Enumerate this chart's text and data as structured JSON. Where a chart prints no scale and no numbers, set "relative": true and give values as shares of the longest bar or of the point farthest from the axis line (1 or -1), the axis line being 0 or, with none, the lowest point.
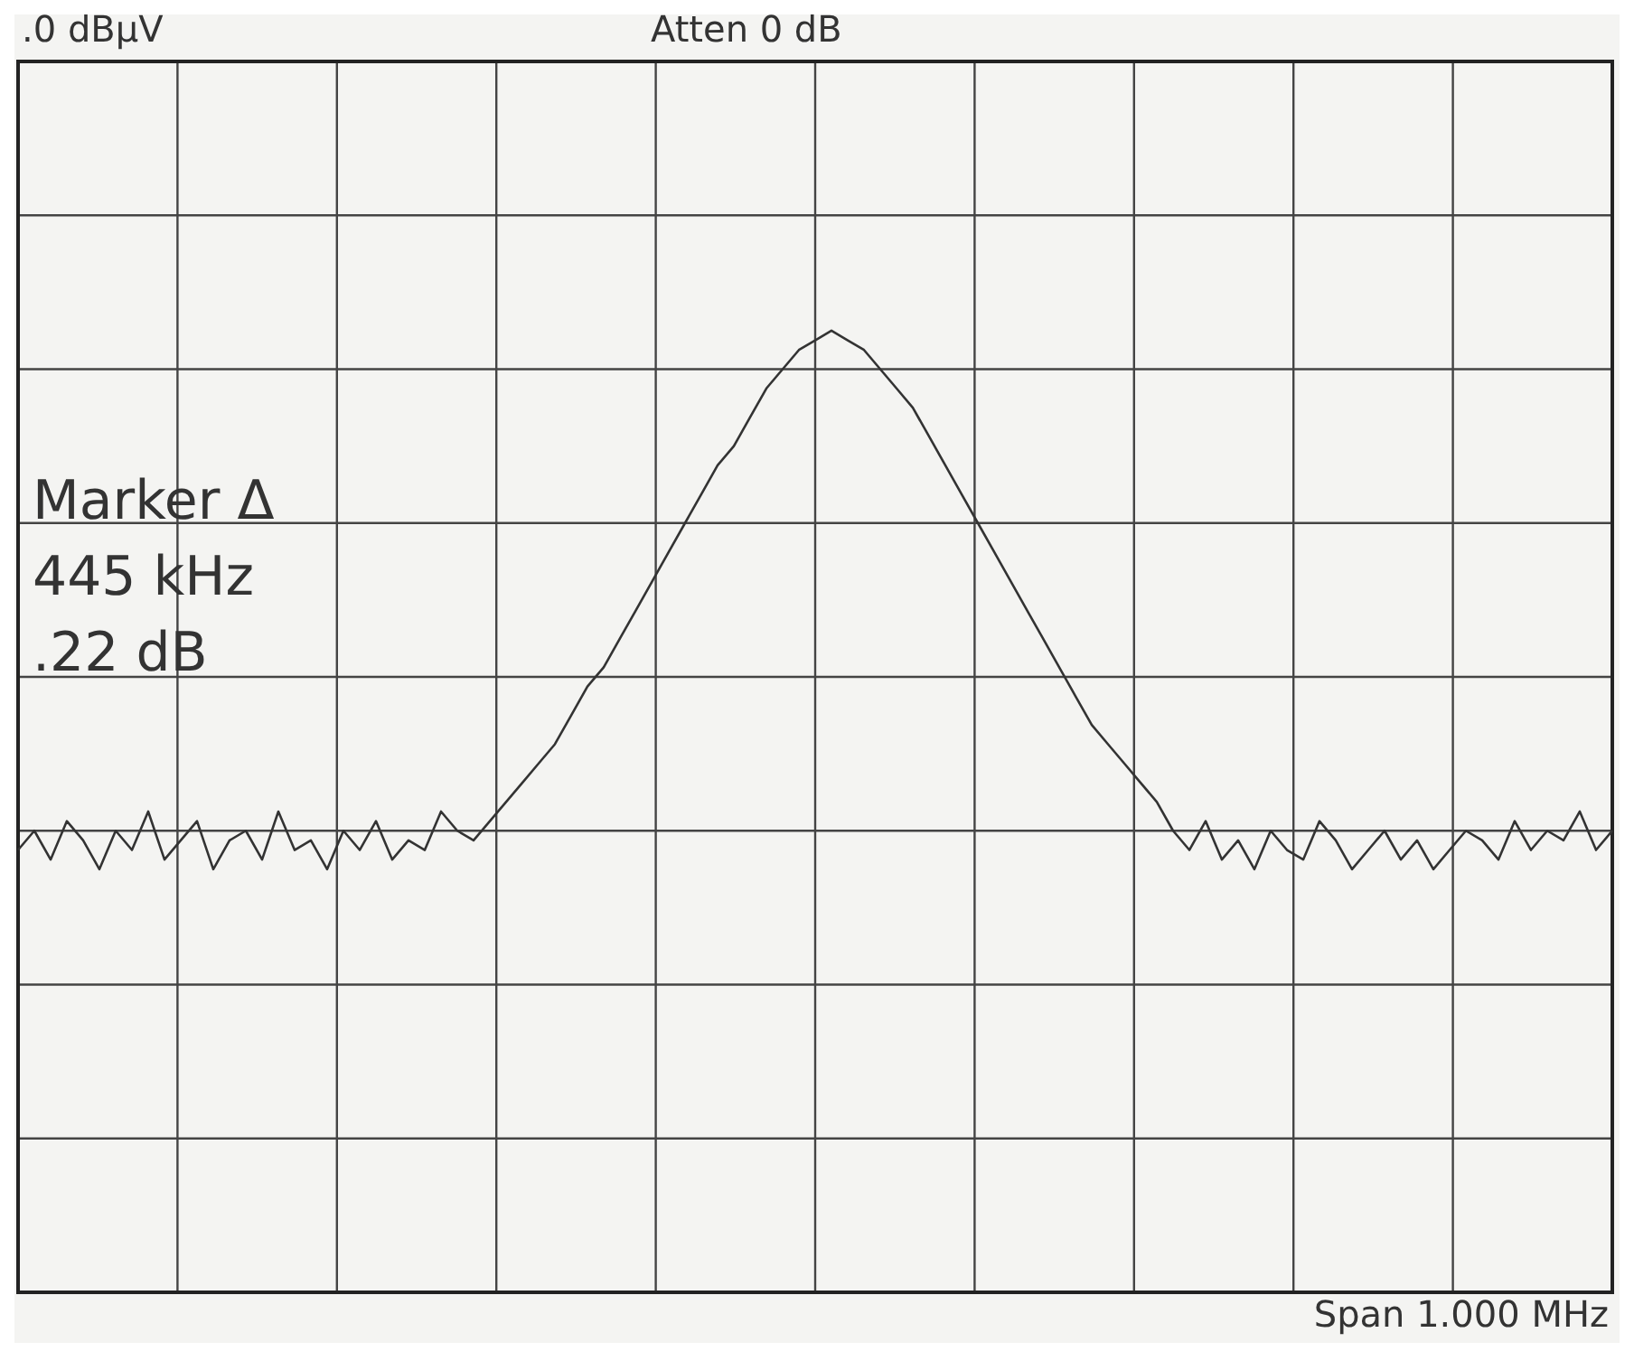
{
  "chart_data": {
    "type": "line",
    "relative": true,
    "grid": true,
    "tick_labels": false,
    "marker": "none",
    "line_style": "solid",
    "legend": false,
    "annotations": [
      ".0 dBµV",
      "Atten 0 dB",
      "Marker Δ\n445 kHz\n.22 dB",
      "Span 1.000 MHz"
    ],
    "categories": [
      null,
      null,
      null,
      null,
      null,
      null,
      null,
      null,
      null,
      null,
      null,
      null,
      null,
      null,
      null,
      null,
      null,
      null,
      null,
      null,
      null,
      null,
      null,
      null,
      null,
      null,
      null,
      null,
      null,
      null,
      null,
      null,
      null,
      null,
      null,
      null,
      null,
      null,
      null,
      null,
      null,
      null,
      null,
      null,
      null,
      null,
      null,
      null,
      null,
      null,
      null,
      null,
      null,
      null,
      null,
      null,
      null,
      null,
      null,
      null,
      null,
      null,
      null,
      null,
      null,
      null,
      null,
      null,
      null,
      null,
      null,
      null,
      null,
      null,
      null,
      null,
      null,
      null,
      null,
      null,
      null,
      null,
      null,
      null,
      null,
      null,
      null,
      null,
      null,
      null,
      null,
      null,
      null,
      null,
      null,
      null,
      null,
      null,
      null
    ],
    "series": [
      {
        "color": "#333333",
        "values": [
          0.46,
          0.48,
          0.45,
          0.49,
          0.47,
          0.44,
          0.48,
          0.46,
          0.5,
          0.45,
          0.47,
          0.49,
          0.44,
          0.47,
          0.48,
          0.45,
          0.5,
          0.46,
          0.47,
          0.44,
          0.48,
          0.46,
          0.49,
          0.45,
          0.47,
          0.46,
          0.5,
          0.48,
          0.47,
          0.49,
          0.51,
          0.53,
          0.55,
          0.57,
          0.6,
          0.63,
          0.65,
          0.68,
          0.71,
          0.74,
          0.77,
          0.8,
          0.83,
          0.86,
          0.88,
          0.91,
          0.94,
          0.96,
          0.98,
          0.99,
          1.0,
          0.99,
          0.98,
          0.96,
          0.94,
          0.92,
          0.89,
          0.86,
          0.83,
          0.8,
          0.77,
          0.74,
          0.71,
          0.68,
          0.65,
          0.62,
          0.59,
          0.57,
          0.55,
          0.53,
          0.51,
          0.48,
          0.46,
          0.49,
          0.45,
          0.47,
          0.44,
          0.48,
          0.46,
          0.45,
          0.49,
          0.47,
          0.44,
          0.46,
          0.48,
          0.45,
          0.47,
          0.44,
          0.46,
          0.48,
          0.47,
          0.45,
          0.49,
          0.46,
          0.48,
          0.47,
          0.5,
          0.46,
          0.48
        ]
      }
    ]
  }
}
